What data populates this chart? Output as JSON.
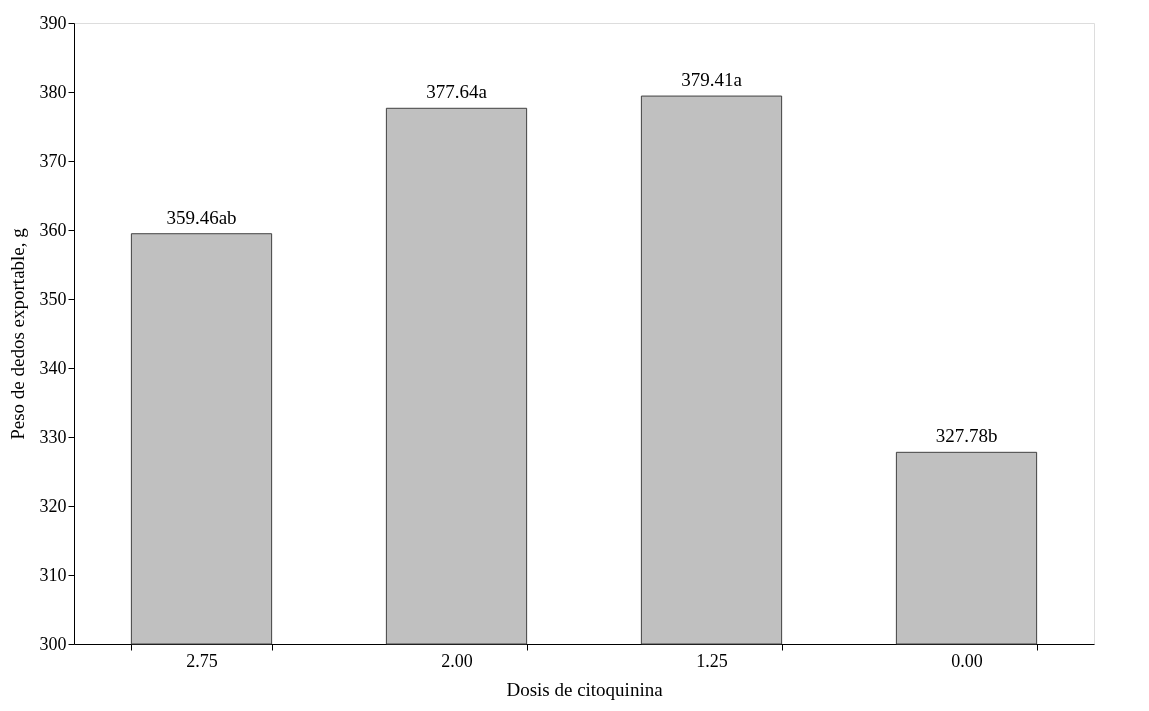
{
  "chart_data": {
    "type": "bar",
    "xlabel": "Dosis de citoquinina",
    "ylabel": "Peso de dedos exportable, g",
    "categories": [
      "2.75",
      "2.00",
      "1.25",
      "0.00"
    ],
    "values": [
      359.46,
      377.64,
      379.41,
      327.78
    ],
    "value_labels": [
      "359.46ab",
      "377.64a",
      "379.41a",
      "327.78b"
    ],
    "color": "#c0c0c0",
    "ylim": [
      300,
      390
    ],
    "yticks": [
      300,
      310,
      320,
      330,
      340,
      350,
      360,
      370,
      380,
      390
    ],
    "grid": false
  }
}
